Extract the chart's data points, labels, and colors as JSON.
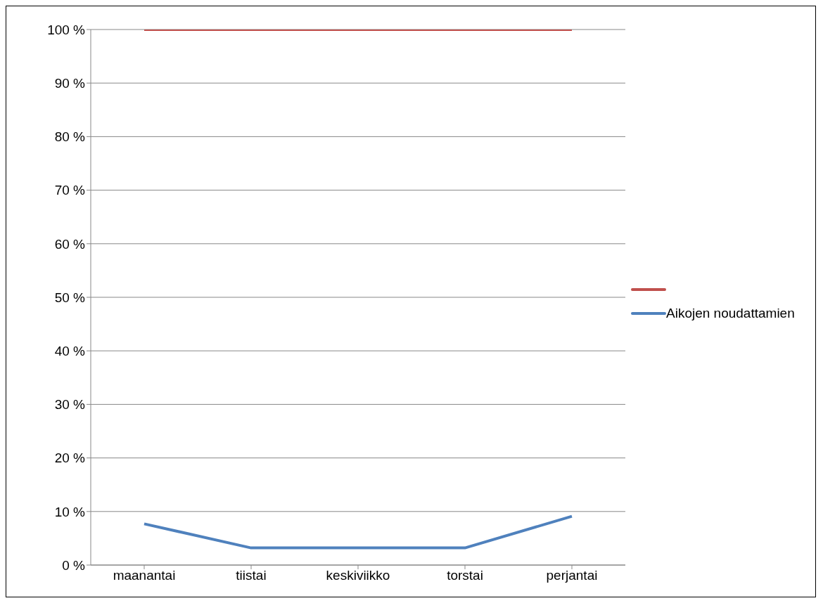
{
  "chart_data": {
    "type": "line",
    "categories": [
      "maanantai",
      "tiistai",
      "keskiviikko",
      "torstai",
      "perjantai"
    ],
    "series": [
      {
        "color": "#c0504d",
        "values": [
          100,
          100,
          100,
          100,
          100
        ]
      },
      {
        "name": "Aikojen noudattamien",
        "color": "#4f81bd",
        "values": [
          7.7,
          3.2,
          3.2,
          3.2,
          9.1
        ]
      }
    ],
    "ylim": [
      0,
      100
    ],
    "yticks": [
      {
        "value": 0,
        "label": "0 %"
      },
      {
        "value": 10,
        "label": "10 %"
      },
      {
        "value": 20,
        "label": "20 %"
      },
      {
        "value": 30,
        "label": "30 %"
      },
      {
        "value": 40,
        "label": "40 %"
      },
      {
        "value": 50,
        "label": "50 %"
      },
      {
        "value": 60,
        "label": "60 %"
      },
      {
        "value": 70,
        "label": "70 %"
      },
      {
        "value": 80,
        "label": "80 %"
      },
      {
        "value": 90,
        "label": "90 %"
      },
      {
        "value": 100,
        "label": "100 %"
      }
    ],
    "grid": "y",
    "legend": "right",
    "marker": "none",
    "line_style": "solid"
  }
}
